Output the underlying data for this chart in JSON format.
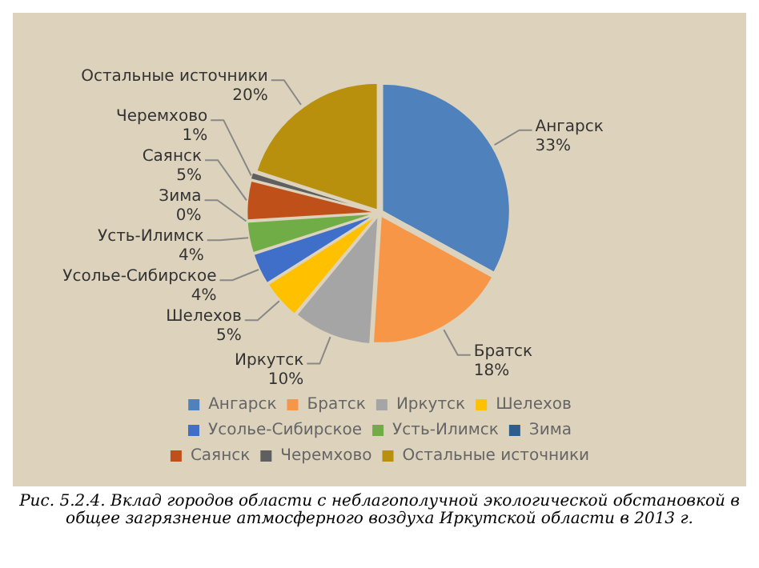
{
  "chart_data": {
    "type": "pie",
    "categories": [
      "Ангарск",
      "Братск",
      "Иркутск",
      "Шелехов",
      "Усолье-Сибирское",
      "Усть-Илимск",
      "Зима",
      "Саянск",
      "Черемхово",
      "Остальные источники"
    ],
    "values": [
      33,
      18,
      10,
      5,
      4,
      4,
      0,
      5,
      1,
      20
    ],
    "colors": [
      "#4f81bd",
      "#f79646",
      "#a5a5a5",
      "#ffc000",
      "#3f6fc8",
      "#70ad47",
      "#2c5d8f",
      "#c0501a",
      "#5f5f5f",
      "#b8900e"
    ],
    "value_labels": [
      "33%",
      "18%",
      "10%",
      "5%",
      "4%",
      "4%",
      "0%",
      "5%",
      "1%",
      "20%"
    ],
    "legend": "bottom",
    "annotations": [
      "Рис. 5.2.4. Вклад городов области с неблагополучной экологической обстановкой в общее загрязнение атмосферного воздуха Иркутской области в 2013 г."
    ]
  }
}
